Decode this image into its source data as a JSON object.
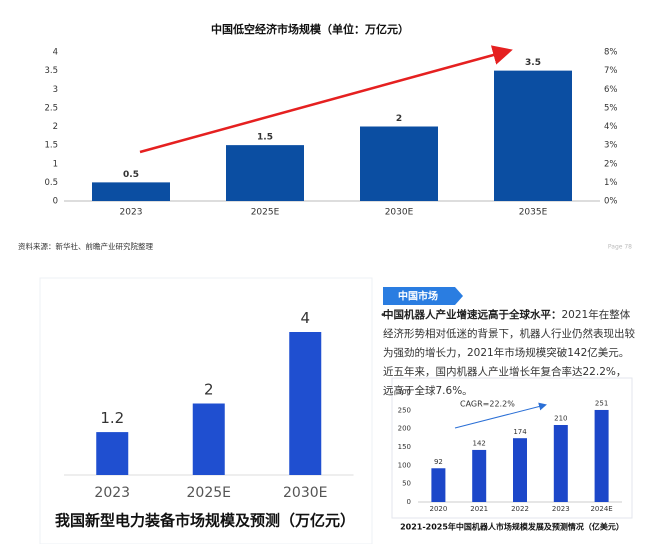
{
  "chart_data": [
    {
      "type": "bar",
      "title": "中国低空经济市场规模（单位：万亿元）",
      "categories": [
        "2023",
        "2025E",
        "2030E",
        "2035E"
      ],
      "values": [
        0.5,
        1.5,
        2,
        3.5
      ],
      "color": "#0b4ea2",
      "ylim": [
        0,
        4
      ],
      "yticks": [
        0,
        0.5,
        1,
        1.5,
        2,
        2.5,
        3,
        3.5,
        4
      ],
      "y2lim": [
        0,
        8
      ],
      "y2ticks": [
        {
          "value": 0,
          "label": "0%"
        },
        {
          "value": 1,
          "label": "1%"
        },
        {
          "value": 2,
          "label": "2%"
        },
        {
          "value": 3,
          "label": "3%"
        },
        {
          "value": 4,
          "label": "4%"
        },
        {
          "value": 5,
          "label": "5%"
        },
        {
          "value": 6,
          "label": "6%"
        },
        {
          "value": 7,
          "label": "7%"
        },
        {
          "value": 8,
          "label": "8%"
        }
      ]
    },
    {
      "type": "bar",
      "title": "我国新型电力装备市场规模及预测（万亿元）",
      "categories": [
        "2023",
        "2025E",
        "2030E"
      ],
      "values": [
        1.2,
        2,
        4
      ],
      "color": "#1f4fd0"
    },
    {
      "type": "bar",
      "title": "2021-2025年中国机器人市场规模发展及预测情况（亿美元）",
      "categories": [
        "2020",
        "2021",
        "2022",
        "2023",
        "2024E"
      ],
      "values": [
        92,
        142,
        174,
        210,
        251
      ],
      "color": "#1c47c9",
      "ylim": [
        0,
        300
      ],
      "yticks": [
        0,
        50,
        100,
        150,
        200,
        250,
        300
      ],
      "annotation": "CAGR=22.2%"
    }
  ],
  "source": "资料来源：新华社、前瞻产业研究院整理",
  "page": "Page 78",
  "panel_header": "中国市场",
  "bullet": {
    "lead": "中国机器人产业增速远高于全球水平：",
    "text": "2021年在整体经济形势相对低迷的背景下，机器人行业仍然表现出较为强劲的增长力，2021年市场规模突破142亿美元。近五年来，国内机器人产业增长年复合率达22.2%，远高于全球7.6%。"
  }
}
